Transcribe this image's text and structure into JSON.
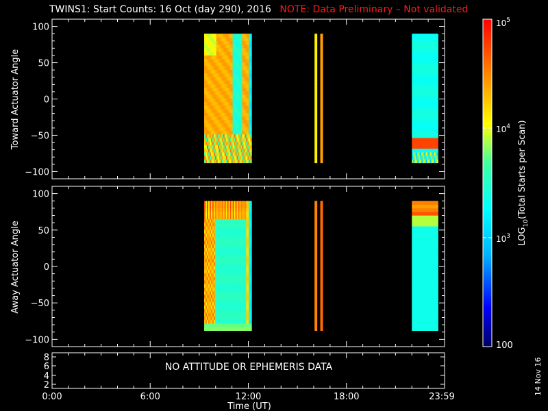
{
  "title": {
    "main": "TWINS1: Start Counts: 16 Oct (day 290), 2016",
    "note": "NOTE: Data Preliminary – Not validated"
  },
  "colors": {
    "background": "#000000",
    "foreground": "#ffffff",
    "note": "#ff1a1a"
  },
  "xaxis": {
    "label": "Time (UT)",
    "ticks": [
      "0:00",
      "6:00",
      "12:00",
      "18:00",
      "23:59"
    ],
    "tick_values_hours": [
      0,
      6,
      12,
      18,
      23.983
    ],
    "range_hours": [
      0,
      24
    ]
  },
  "panels": {
    "top": {
      "ylabel": "Toward Actuator Angle",
      "ticks": [
        "100",
        "50",
        "0",
        "−50",
        "−100"
      ]
    },
    "bottom": {
      "ylabel": "Away Actuator Angle",
      "ticks": [
        "100",
        "50",
        "0",
        "−50",
        "−100"
      ]
    },
    "attitude": {
      "ticks": [
        "8",
        "6",
        "4",
        "2"
      ],
      "message": "NO ATTITUDE OR EPHEMERIS DATA"
    }
  },
  "colorbar": {
    "label": "LOG10(Total Starts per Scan)",
    "label_main": "LOG",
    "label_sub": "10",
    "label_rest": "(Total Starts per Scan)",
    "tick_top": "10",
    "tick_top_exp": "5",
    "tick_mid_hi": "10",
    "tick_mid_hi_exp": "4",
    "tick_mid_lo": "10",
    "tick_mid_lo_exp": "3",
    "tick_bottom": "100",
    "scale": "log",
    "range": [
      100,
      100000
    ]
  },
  "date_stamp": "14 Nov 16",
  "chart_data": [
    {
      "type": "heatmap",
      "panel": "top",
      "ylabel": "Toward Actuator Angle",
      "ylim": [
        -110,
        110
      ],
      "xlim": [
        0,
        24
      ],
      "y_extent": [
        -88,
        90
      ],
      "blocks": [
        {
          "x_start": 9.3,
          "x_end": 12.2,
          "dominant_log10": 4.3,
          "pattern": "mixed orange/yellow with cyan band near 11h"
        },
        {
          "x_start": 16.05,
          "x_end": 16.2,
          "dominant_log10": 4.1,
          "pattern": "yellow"
        },
        {
          "x_start": 16.4,
          "x_end": 16.55,
          "dominant_log10": 4.4,
          "pattern": "orange"
        },
        {
          "x_start": 22.0,
          "x_end": 23.6,
          "dominant_log10": 3.4,
          "pattern": "cyan, orange/red near bottom"
        }
      ]
    },
    {
      "type": "heatmap",
      "panel": "bottom",
      "ylabel": "Away Actuator Angle",
      "ylim": [
        -110,
        110
      ],
      "xlim": [
        0,
        24
      ],
      "y_extent": [
        -88,
        90
      ],
      "blocks": [
        {
          "x_start": 9.3,
          "x_end": 12.2,
          "dominant_log10": 3.6,
          "pattern": "orange left, cyan center, orange top"
        },
        {
          "x_start": 16.05,
          "x_end": 16.2,
          "dominant_log10": 4.5,
          "pattern": "orange"
        },
        {
          "x_start": 16.4,
          "x_end": 16.55,
          "dominant_log10": 4.6,
          "pattern": "orange/red"
        },
        {
          "x_start": 22.0,
          "x_end": 23.6,
          "dominant_log10": 3.4,
          "pattern": "cyan, orange/red near top"
        }
      ]
    }
  ]
}
